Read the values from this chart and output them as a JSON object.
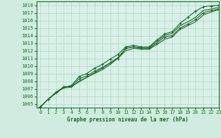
{
  "title": "Graphe pression niveau de la mer (hPa)",
  "xlim": [
    -0.5,
    23
  ],
  "ylim": [
    1004.5,
    1018.5
  ],
  "yticks": [
    1005,
    1006,
    1007,
    1008,
    1009,
    1010,
    1011,
    1012,
    1013,
    1014,
    1015,
    1016,
    1017,
    1018
  ],
  "xticks": [
    0,
    1,
    2,
    3,
    4,
    5,
    6,
    7,
    8,
    9,
    10,
    11,
    12,
    13,
    14,
    15,
    16,
    17,
    18,
    19,
    20,
    21,
    22,
    23
  ],
  "bg_color": "#d0ece0",
  "plot_bg_color": "#d8f0e8",
  "grid_color": "#b0d8c0",
  "line_color": "#1a6b2a",
  "line1": [
    1004.6,
    1005.6,
    1006.5,
    1007.2,
    1007.3,
    1008.3,
    1008.7,
    1009.3,
    1009.8,
    1010.4,
    1011.0,
    1012.3,
    1012.5,
    1012.3,
    1012.3,
    1013.0,
    1013.8,
    1014.0,
    1015.0,
    1015.5,
    1016.1,
    1017.0,
    1017.3,
    1017.5
  ],
  "line2": [
    1004.6,
    1005.6,
    1006.4,
    1007.2,
    1007.3,
    1007.9,
    1008.5,
    1009.0,
    1009.5,
    1010.2,
    1011.0,
    1012.0,
    1012.3,
    1012.2,
    1012.2,
    1012.8,
    1013.5,
    1013.8,
    1014.8,
    1015.3,
    1015.8,
    1016.7,
    1017.1,
    1017.4
  ],
  "line3": [
    1004.6,
    1005.6,
    1006.4,
    1007.1,
    1007.2,
    1008.0,
    1008.5,
    1009.1,
    1009.7,
    1010.4,
    1011.1,
    1012.3,
    1012.5,
    1012.4,
    1012.4,
    1013.2,
    1014.0,
    1014.3,
    1015.3,
    1015.8,
    1016.4,
    1017.3,
    1017.5,
    1017.7
  ],
  "line4": [
    1004.6,
    1005.6,
    1006.5,
    1007.2,
    1007.4,
    1008.6,
    1009.0,
    1009.7,
    1010.2,
    1010.9,
    1011.5,
    1012.5,
    1012.7,
    1012.5,
    1012.5,
    1013.4,
    1014.2,
    1014.5,
    1015.6,
    1016.4,
    1017.2,
    1017.8,
    1017.9,
    1018.0
  ]
}
